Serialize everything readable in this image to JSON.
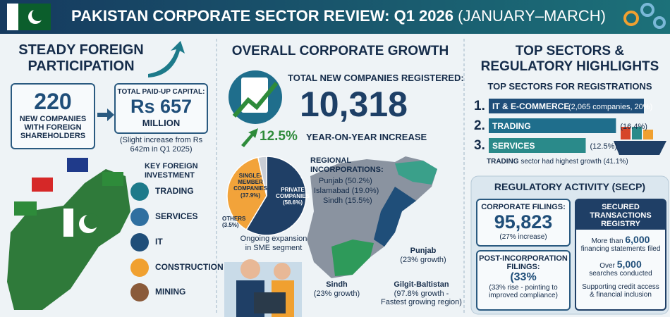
{
  "header": {
    "title": "PAKISTAN CORPORATE SECTOR REVIEW: Q1 2026",
    "subtitle": "(JANUARY–MARCH)"
  },
  "foreign": {
    "heading": "STEADY FOREIGN PARTICIPATION",
    "companies": "220",
    "companies_label": "NEW COMPANIES WITH FOREIGN SHAREHOLDERS",
    "capital_label": "TOTAL PAID-UP CAPITAL:",
    "capital": "Rs 657",
    "capital_unit": "MILLION",
    "capital_note": "(Slight increase from Rs 642m in Q1 2025)",
    "sectors_heading": "KEY FOREIGN INVESTMENT",
    "sectors": [
      "TRADING",
      "SERVICES",
      "IT",
      "CONSTRUCTION",
      "MINING"
    ]
  },
  "growth": {
    "heading": "OVERALL CORPORATE GROWTH",
    "total_label": "TOTAL NEW COMPANIES REGISTERED:",
    "total": "10,318",
    "yoy": "12.5%",
    "yoy_label": "YEAR-ON-YEAR INCREASE",
    "pie_note": "Ongoing expansion in SME segment",
    "regional_heading": "REGIONAL INCORPORATIONS:",
    "regional": [
      "Punjab (50.2%)",
      "Islamabad (19.0%)",
      "Sindh (15.5%)"
    ],
    "regions": [
      {
        "name": "Punjab",
        "note": "(23% growth)"
      },
      {
        "name": "Sindh",
        "note": "(23% growth)"
      },
      {
        "name": "Gilgit-Baltistan",
        "note": "(97.8% growth - Fastest growing region)"
      }
    ]
  },
  "chart_data": {
    "type": "pie",
    "categories": [
      "PRIVATE COMPANIES",
      "SINGLE-MEMBER COMPANIES",
      "OTHERS"
    ],
    "values": [
      58.6,
      37.9,
      3.5
    ],
    "value_labels": [
      "(58.6%)",
      "(37.9%)",
      "(3.5%)"
    ],
    "colors": [
      "#1f3f66",
      "#f2a33a",
      "#c9ced6"
    ]
  },
  "sectors": {
    "heading": "TOP SECTORS & REGULATORY HIGHLIGHTS",
    "subheading": "TOP SECTORS FOR REGISTRATIONS",
    "ranks": [
      "1.",
      "2.",
      "3."
    ],
    "names": [
      "IT & E-COMMERCE",
      "TRADING",
      "SERVICES"
    ],
    "values": [
      20,
      16.4,
      12.5
    ],
    "value_labels": [
      "(2,065 companies, 20%)",
      "(16.4%)",
      "(12.5%)"
    ],
    "colors": [
      "#1f4e79",
      "#1f6e8c",
      "#2a8a8a"
    ],
    "note_lead": "TRADING",
    "note": "sector had highest growth (41.1%)"
  },
  "regulatory": {
    "heading": "REGULATORY ACTIVITY (SECP)",
    "filings_label": "CORPORATE FILINGS:",
    "filings": "95,823",
    "filings_note": "(27% increase)",
    "post_label": "POST-INCORPORATION FILINGS:",
    "post": "(33%",
    "post_note": "(33% rise - pointing to improved compliance)",
    "registry_heading": "SECURED TRANSACTIONS REGISTRY",
    "statements_lead": "More than",
    "statements": "6,000",
    "statements_label": "financing statements filed",
    "searches_lead": "Over",
    "searches": "5,000",
    "searches_label": "searches conducted",
    "support": "Supporting credit access & financial inclusion"
  }
}
